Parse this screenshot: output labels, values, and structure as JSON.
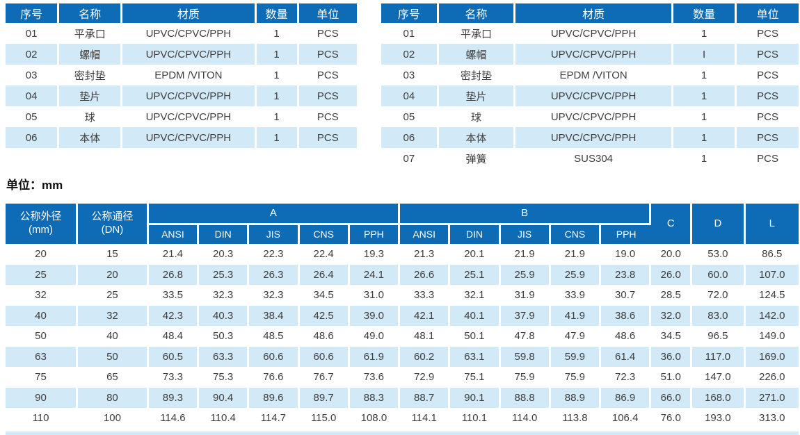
{
  "colors": {
    "header_bg": "#0d6cb5",
    "stripe_bg": "#d2e9f7",
    "body_text": "#3d3d3d"
  },
  "parts_table_left": {
    "headers": [
      "序号",
      "名称",
      "材质",
      "数量",
      "单位"
    ],
    "rows": [
      [
        "01",
        "平承口",
        "UPVC/CPVC/PPH",
        "1",
        "PCS"
      ],
      [
        "02",
        "螺帽",
        "UPVC/CPVC/PPH",
        "1",
        "PCS"
      ],
      [
        "03",
        "密封垫",
        "EPDM /VITON",
        "1",
        "PCS"
      ],
      [
        "04",
        "垫片",
        "UPVC/CPVC/PPH",
        "1",
        "PCS"
      ],
      [
        "05",
        "球",
        "UPVC/CPVC/PPH",
        "1",
        "PCS"
      ],
      [
        "06",
        "本体",
        "UPVC/CPVC/PPH",
        "1",
        "PCS"
      ]
    ]
  },
  "parts_table_right": {
    "headers": [
      "序号",
      "名称",
      "材质",
      "数量",
      "单位"
    ],
    "rows": [
      [
        "01",
        "平承口",
        "UPVC/CPVC/PPH",
        "1",
        "PCS"
      ],
      [
        "02",
        "螺帽",
        "UPVC/CPVC/PPH",
        "I",
        "PCS"
      ],
      [
        "03",
        "密封垫",
        "EPDM /VITON",
        "1",
        "PCS"
      ],
      [
        "04",
        "垫片",
        "UPVC/CPVC/PPH",
        "1",
        "PCS"
      ],
      [
        "05",
        "球",
        "UPVC/CPVC/PPH",
        "1",
        "PCS"
      ],
      [
        "06",
        "本体",
        "UPVC/CPVC/PPH",
        "1",
        "PCS"
      ],
      [
        "07",
        "弹簧",
        "SUS304",
        "1",
        "PCS"
      ]
    ]
  },
  "unit_label": "单位：mm",
  "dimension_table": {
    "header": {
      "col_od_line1": "公称外径",
      "col_od_line2": "(mm)",
      "col_dn_line1": "公称通径",
      "col_dn_line2": "(DN)",
      "group_a": "A",
      "group_b": "B",
      "standards": [
        "ANSI",
        "DIN",
        "JIS",
        "CNS",
        "PPH"
      ],
      "col_c": "C",
      "col_d": "D",
      "col_l": "L"
    },
    "rows": [
      [
        "20",
        "15",
        "21.4",
        "20.3",
        "22.3",
        "22.4",
        "19.3",
        "21.3",
        "20.1",
        "21.9",
        "21.9",
        "19.0",
        "20.0",
        "53.0",
        "86.5"
      ],
      [
        "25",
        "20",
        "26.8",
        "25.3",
        "26.3",
        "26.4",
        "24.1",
        "26.6",
        "25.1",
        "25.9",
        "25.9",
        "23.8",
        "26.0",
        "60.0",
        "107.0"
      ],
      [
        "32",
        "25",
        "33.5",
        "32.3",
        "32.3",
        "34.5",
        "31.0",
        "33.3",
        "32.1",
        "31.9",
        "33.9",
        "30.7",
        "28.5",
        "72.0",
        "124.5"
      ],
      [
        "40",
        "32",
        "42.3",
        "40.3",
        "38.4",
        "42.5",
        "39.0",
        "42.1",
        "40.1",
        "37.9",
        "41.9",
        "38.6",
        "32.0",
        "83.0",
        "142.0"
      ],
      [
        "50",
        "40",
        "48.4",
        "50.3",
        "48.5",
        "48.6",
        "49.0",
        "48.1",
        "50.1",
        "47.8",
        "47.9",
        "48.6",
        "34.5",
        "96.5",
        "149.0"
      ],
      [
        "63",
        "50",
        "60.5",
        "63.3",
        "60.6",
        "60.6",
        "61.9",
        "60.2",
        "63.1",
        "59.8",
        "59.9",
        "61.4",
        "36.0",
        "117.0",
        "169.0"
      ],
      [
        "75",
        "65",
        "73.3",
        "75.3",
        "76.6",
        "76.7",
        "73.6",
        "72.9",
        "75.1",
        "75.9",
        "75.9",
        "72.3",
        "51.0",
        "147.0",
        "226.0"
      ],
      [
        "90",
        "80",
        "89.3",
        "90.4",
        "89.6",
        "89.7",
        "88.3",
        "88.7",
        "90.1",
        "88.8",
        "88.9",
        "86.9",
        "66.0",
        "168.0",
        "271.0"
      ],
      [
        "110",
        "100",
        "114.6",
        "110.4",
        "114.7",
        "115.0",
        "108.0",
        "114.1",
        "110.1",
        "114.0",
        "113.8",
        "106.4",
        "76.0",
        "193.0",
        "313.0"
      ]
    ]
  }
}
